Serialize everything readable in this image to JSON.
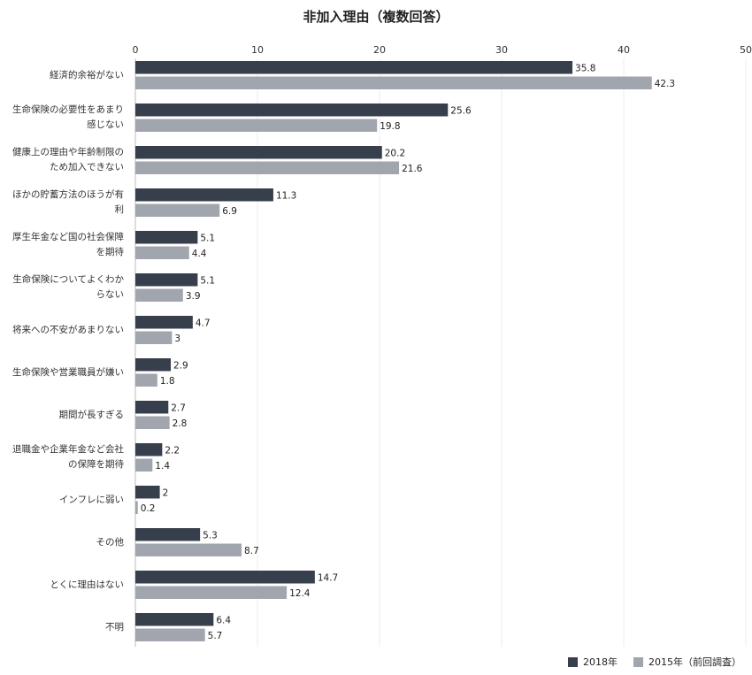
{
  "chart_data": {
    "type": "bar",
    "orientation": "horizontal",
    "title": "非加入理由（複数回答）",
    "xlim": [
      0,
      50
    ],
    "xticks": [
      0,
      10,
      20,
      30,
      40,
      50
    ],
    "grid": true,
    "legend_placement": "bottom-right",
    "categories": [
      "経済的余裕がない",
      "生命保険の必要性をあまり感じない",
      "健康上の理由や年齢制限のため加入できない",
      "ほかの貯蓄方法のほうが有利",
      "厚生年金など国の社会保障を期待",
      "生命保険についてよくわからない",
      "将来への不安があまりない",
      "生命保険や営業職員が嫌い",
      "期間が長すぎる",
      "退職金や企業年金など会社の保障を期待",
      "インフレに弱い",
      "その他",
      "とくに理由はない",
      "不明"
    ],
    "series": [
      {
        "name": "2018年",
        "color": "#373f4c",
        "values": [
          35.8,
          25.6,
          20.2,
          11.3,
          5.1,
          5.1,
          4.7,
          2.9,
          2.7,
          2.2,
          2,
          5.3,
          14.7,
          6.4
        ]
      },
      {
        "name": "2015年（前回調査）",
        "color": "#a1a6ae",
        "values": [
          42.3,
          19.8,
          21.6,
          6.9,
          4.4,
          3.9,
          3,
          1.8,
          2.8,
          1.4,
          0.2,
          8.7,
          12.4,
          5.7
        ]
      }
    ]
  }
}
